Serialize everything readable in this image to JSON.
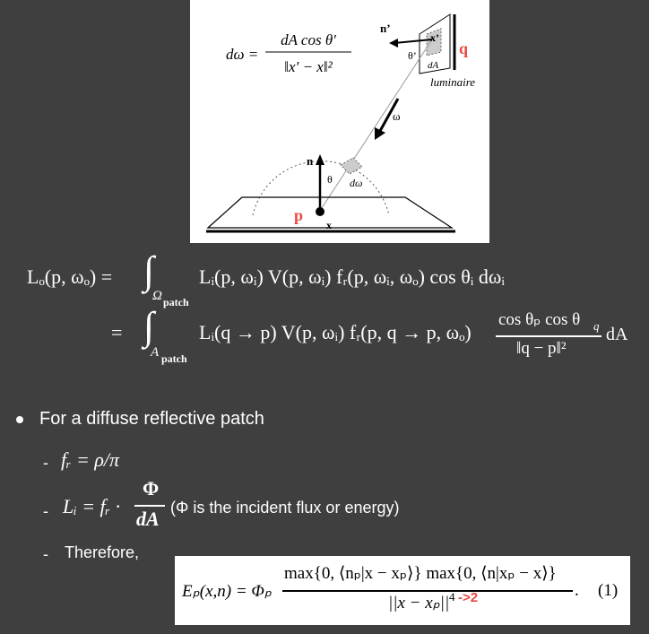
{
  "figure": {
    "formula": {
      "lhs": "dω =",
      "numerator": "dA cos θ′",
      "denominator": "‖x′ − x‖²"
    },
    "labels": {
      "n_prime": "n’",
      "theta_prime": "θ’",
      "x_prime": "x’",
      "dA": "dA",
      "q": "q",
      "luminaire": "luminaire",
      "omega": "ω",
      "n": "n",
      "theta": "θ",
      "d_omega": "dω",
      "p": "p",
      "x": "x"
    }
  },
  "equations": [
    {
      "lhs": "Lₒ(p, ωₒ) =",
      "integral": "∫",
      "domain": "Ω",
      "domain_sub": "patch",
      "integrand": "Lᵢ(p, ωᵢ) V(p, ωᵢ) fᵣ(p, ωᵢ, ωₒ) cos θᵢ dωᵢ"
    },
    {
      "lhs": "=",
      "integral": "∫",
      "domain": "A",
      "domain_sub": "patch",
      "integrand": "Lᵢ(q → p) V(p, ωᵢ) fᵣ(p, q → p, ωₒ)",
      "numerator": "cos θₚ cos θ",
      "numerator_sub": "q",
      "denominator": "‖q − p‖²",
      "trailing": "dA"
    }
  ],
  "bullet": "For a diffuse reflective patch",
  "items": [
    {
      "dash": "-",
      "text": "fᵣ = ρ/π"
    },
    {
      "dash": "-",
      "lhs": "Lᵢ = fᵣ ·",
      "numerator": "Φ",
      "denominator": "dA",
      "note": "(Φ is the incident flux or energy)"
    },
    {
      "dash": "-",
      "text": "Therefore,"
    }
  ],
  "box": {
    "lhs": "Eₚ(x,n) = Φₚ",
    "numerator": "max{0, ⟨nₚ|x − xₚ⟩} max{0, ⟨n|xₚ − x⟩}",
    "denominator": "||x − xₚ||",
    "exponent": "4",
    "annotation": "->2",
    "period": ".",
    "number": "(1)"
  }
}
